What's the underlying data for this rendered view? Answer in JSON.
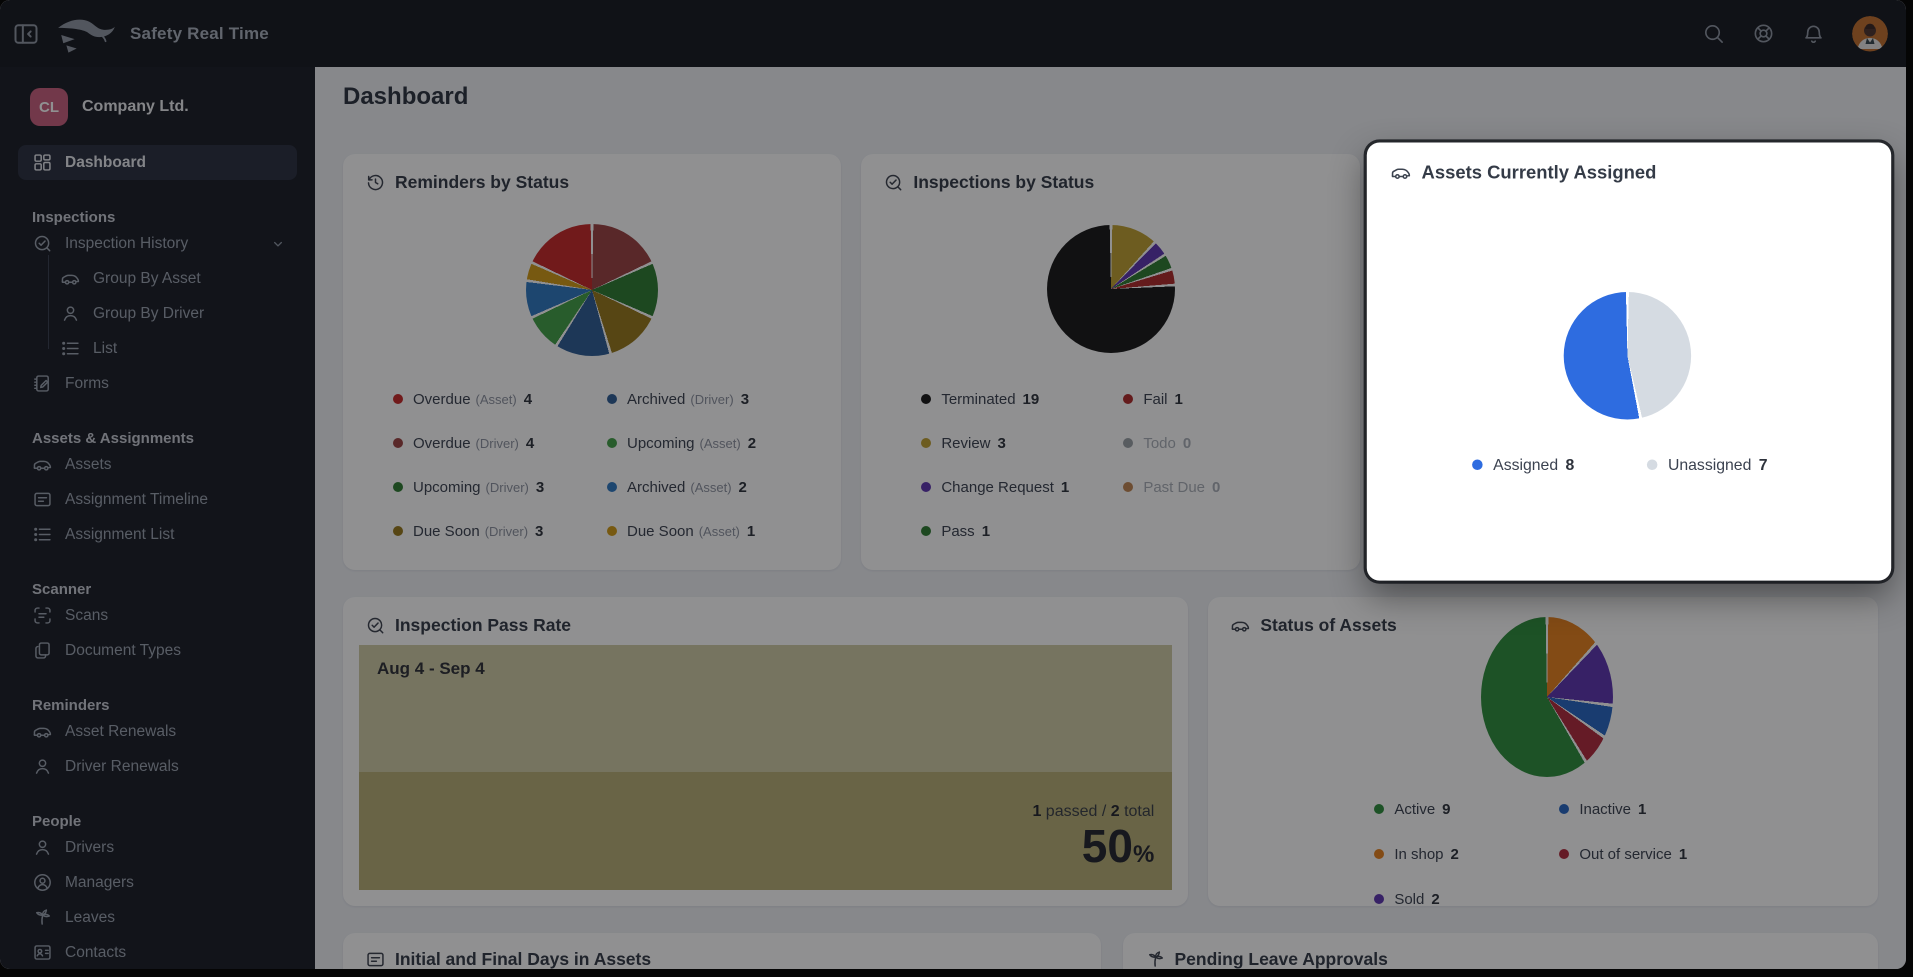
{
  "topbar": {
    "app_title": "Safety Real Time",
    "icons": [
      "collapse-sidebar-icon",
      "logo-icon",
      "search-icon",
      "help-lifebuoy-icon",
      "notifications-bell-icon",
      "user-avatar"
    ]
  },
  "sidebar": {
    "company": {
      "initials": "CL",
      "name": "Company Ltd.",
      "badge_color": "#c95f7f"
    },
    "sections": [
      {
        "header": "",
        "items": [
          {
            "icon": "dashboard-icon",
            "label": "Dashboard",
            "active": true
          }
        ]
      },
      {
        "header": "Inspections",
        "items": [
          {
            "icon": "inspection-icon",
            "label": "Inspection History",
            "chevron": true
          },
          {
            "icon": "truck-icon",
            "label": "Group By Asset",
            "indent": true
          },
          {
            "icon": "person-icon",
            "label": "Group By Driver",
            "indent": true
          },
          {
            "icon": "list-icon",
            "label": "List",
            "indent": true,
            "last": true
          },
          {
            "icon": "forms-icon",
            "label": "Forms"
          }
        ]
      },
      {
        "header": "Assets & Assignments",
        "items": [
          {
            "icon": "truck-icon",
            "label": "Assets"
          },
          {
            "icon": "card-lines-icon",
            "label": "Assignment Timeline"
          },
          {
            "icon": "list-icon",
            "label": "Assignment List"
          }
        ]
      },
      {
        "header": "Scanner",
        "items": [
          {
            "icon": "scan-icon",
            "label": "Scans"
          },
          {
            "icon": "documents-icon",
            "label": "Document Types"
          }
        ]
      },
      {
        "header": "Reminders",
        "items": [
          {
            "icon": "truck-icon",
            "label": "Asset Renewals"
          },
          {
            "icon": "person-icon",
            "label": "Driver Renewals"
          }
        ]
      },
      {
        "header": "People",
        "items": [
          {
            "icon": "person-icon",
            "label": "Drivers"
          },
          {
            "icon": "person-circle-icon",
            "label": "Managers"
          },
          {
            "icon": "palm-icon",
            "label": "Leaves"
          },
          {
            "icon": "contact-card-icon",
            "label": "Contacts"
          }
        ]
      }
    ]
  },
  "page": {
    "title": "Dashboard"
  },
  "cards": {
    "reminders": {
      "icon": "history-clock-icon",
      "title": "Reminders by Status",
      "chart_data": {
        "type": "pie",
        "slices": [
          {
            "label": "Overdue (Driver)",
            "value": 4,
            "color": "#9c4343"
          },
          {
            "label": "Upcoming (Driver)",
            "value": 3,
            "color": "#2e7d32"
          },
          {
            "label": "Due Soon (Driver)",
            "value": 3,
            "color": "#97791c"
          },
          {
            "label": "Archived (Driver)",
            "value": 3,
            "color": "#2f5e96"
          },
          {
            "label": "Upcoming (Asset)",
            "value": 2,
            "color": "#43a047"
          },
          {
            "label": "Archived (Asset)",
            "value": 2,
            "color": "#2f78c2"
          },
          {
            "label": "Due Soon (Asset)",
            "value": 1,
            "color": "#d29b17"
          },
          {
            "label": "Overdue (Asset)",
            "value": 4,
            "color": "#c62828"
          }
        ]
      },
      "legend_columns": [
        [
          {
            "label": "Overdue",
            "sublabel": "(Asset)",
            "value": "4",
            "color": "#c62828"
          },
          {
            "label": "Overdue",
            "sublabel": "(Driver)",
            "value": "4",
            "color": "#9c4343"
          },
          {
            "label": "Upcoming",
            "sublabel": "(Driver)",
            "value": "3",
            "color": "#2e7d32"
          },
          {
            "label": "Due Soon",
            "sublabel": "(Driver)",
            "value": "3",
            "color": "#97791c"
          }
        ],
        [
          {
            "label": "Archived",
            "sublabel": "(Driver)",
            "value": "3",
            "color": "#2f5e96"
          },
          {
            "label": "Upcoming",
            "sublabel": "(Asset)",
            "value": "2",
            "color": "#43a047"
          },
          {
            "label": "Archived",
            "sublabel": "(Asset)",
            "value": "2",
            "color": "#2f78c2"
          },
          {
            "label": "Due Soon",
            "sublabel": "(Asset)",
            "value": "1",
            "color": "#d29b17"
          }
        ]
      ]
    },
    "inspections": {
      "icon": "inspection-icon",
      "title": "Inspections by Status",
      "chart_data": {
        "type": "pie",
        "slices": [
          {
            "label": "Review",
            "value": 3,
            "color": "#bfa132"
          },
          {
            "label": "Change Request",
            "value": 1,
            "color": "#5e35b1"
          },
          {
            "label": "Pass",
            "value": 1,
            "color": "#2e7d32"
          },
          {
            "label": "Fail",
            "value": 1,
            "color": "#b02a2a"
          },
          {
            "label": "Terminated",
            "value": 19,
            "color": "#181818"
          }
        ]
      },
      "legend_columns": [
        [
          {
            "label": "Terminated",
            "sublabel": "",
            "value": "19",
            "color": "#181818"
          },
          {
            "label": "Review",
            "sublabel": "",
            "value": "3",
            "color": "#bfa132"
          },
          {
            "label": "Change Request",
            "sublabel": "",
            "value": "1",
            "color": "#5e35b1"
          },
          {
            "label": "Pass",
            "sublabel": "",
            "value": "1",
            "color": "#2e7d32"
          }
        ],
        [
          {
            "label": "Fail",
            "sublabel": "",
            "value": "1",
            "color": "#b02a2a"
          },
          {
            "label": "Todo",
            "sublabel": "",
            "value": "0",
            "color": "#9aa0a6",
            "dim": true
          },
          {
            "label": "Past Due",
            "sublabel": "",
            "value": "0",
            "color": "#c08552",
            "dim": true
          }
        ]
      ]
    },
    "assigned": {
      "icon": "truck-icon",
      "title": "Assets Currently Assigned",
      "highlighted": true,
      "chart_data": {
        "type": "pie",
        "slices": [
          {
            "label": "Unassigned",
            "value": 7,
            "color": "#d5dbe2"
          },
          {
            "label": "Assigned",
            "value": 8,
            "color": "#2e6ce0"
          }
        ]
      },
      "legend_columns": [
        [
          {
            "label": "Assigned",
            "sublabel": "",
            "value": "8",
            "color": "#2e6ce0"
          }
        ],
        [
          {
            "label": "Unassigned",
            "sublabel": "",
            "value": "7",
            "color": "#d5dbe2"
          }
        ]
      ]
    },
    "pass_rate": {
      "icon": "inspection-icon",
      "title": "Inspection Pass Rate",
      "period": "Aug 4 - Sep 4",
      "passed_value": "1",
      "passed_text": " passed / ",
      "total_value": "2",
      "total_text": " total",
      "percent_value": "50",
      "percent_unit": "%",
      "panel_top_color": "#cfcda6",
      "panel_bottom_color": "#b8b077",
      "chart_data": {
        "type": "gauge",
        "percent": 50,
        "passed": 1,
        "total": 2,
        "period": "Aug 4 - Sep 4"
      }
    },
    "asset_status": {
      "icon": "truck-icon",
      "title": "Status of Assets",
      "chart_data": {
        "type": "pie",
        "slices": [
          {
            "label": "In shop",
            "value": 2,
            "color": "#e8821e"
          },
          {
            "label": "Sold",
            "value": 2,
            "color": "#5e35b1"
          },
          {
            "label": "Inactive",
            "value": 1,
            "color": "#2766c4"
          },
          {
            "label": "Out of service",
            "value": 1,
            "color": "#b12a3c"
          },
          {
            "label": "Active",
            "value": 9,
            "color": "#2f8e3c"
          }
        ]
      },
      "legend_columns": [
        [
          {
            "label": "Active",
            "sublabel": "",
            "value": "9",
            "color": "#2f8e3c"
          },
          {
            "label": "In shop",
            "sublabel": "",
            "value": "2",
            "color": "#e8821e"
          },
          {
            "label": "Sold",
            "sublabel": "",
            "value": "2",
            "color": "#5e35b1"
          }
        ],
        [
          {
            "label": "Inactive",
            "sublabel": "",
            "value": "1",
            "color": "#2766c4"
          },
          {
            "label": "Out of service",
            "sublabel": "",
            "value": "1",
            "color": "#b12a3c"
          }
        ]
      ]
    },
    "initial_final": {
      "icon": "card-lines-icon",
      "title": "Initial and Final Days in Assets"
    },
    "pending_leaves": {
      "icon": "palm-icon",
      "title": "Pending Leave Approvals"
    }
  }
}
